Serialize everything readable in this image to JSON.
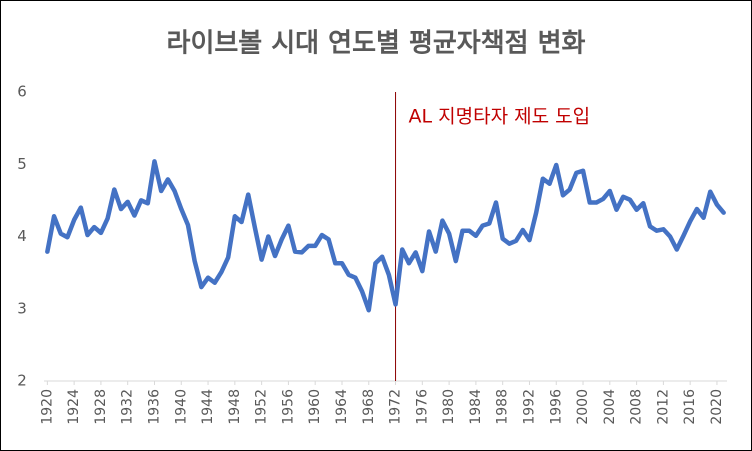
{
  "chart_data": {
    "type": "line",
    "title": "라이브볼 시대 연도별 평균자책점 변화",
    "x": [
      1920,
      1921,
      1922,
      1923,
      1924,
      1925,
      1926,
      1927,
      1928,
      1929,
      1930,
      1931,
      1932,
      1933,
      1934,
      1935,
      1936,
      1937,
      1938,
      1939,
      1940,
      1941,
      1942,
      1943,
      1944,
      1945,
      1946,
      1947,
      1948,
      1949,
      1950,
      1951,
      1952,
      1953,
      1954,
      1955,
      1956,
      1957,
      1958,
      1959,
      1960,
      1961,
      1962,
      1963,
      1964,
      1965,
      1966,
      1967,
      1968,
      1969,
      1970,
      1971,
      1972,
      1973,
      1974,
      1975,
      1976,
      1977,
      1978,
      1979,
      1980,
      1981,
      1982,
      1983,
      1984,
      1985,
      1986,
      1987,
      1988,
      1989,
      1990,
      1991,
      1992,
      1993,
      1994,
      1995,
      1996,
      1997,
      1998,
      1999,
      2000,
      2001,
      2002,
      2003,
      2004,
      2005,
      2006,
      2007,
      2008,
      2009,
      2010,
      2011,
      2012,
      2013,
      2014,
      2015,
      2016,
      2017,
      2018,
      2019,
      2020,
      2021
    ],
    "values": [
      3.79,
      4.28,
      4.04,
      3.99,
      4.23,
      4.4,
      4.02,
      4.13,
      4.05,
      4.25,
      4.65,
      4.38,
      4.48,
      4.29,
      4.5,
      4.46,
      5.04,
      4.63,
      4.79,
      4.63,
      4.38,
      4.16,
      3.66,
      3.3,
      3.43,
      3.36,
      3.51,
      3.71,
      4.28,
      4.2,
      4.58,
      4.12,
      3.68,
      4.0,
      3.73,
      3.96,
      4.15,
      3.79,
      3.78,
      3.87,
      3.87,
      4.02,
      3.96,
      3.63,
      3.63,
      3.47,
      3.43,
      3.24,
      2.98,
      3.63,
      3.72,
      3.47,
      3.06,
      3.82,
      3.63,
      3.78,
      3.52,
      4.07,
      3.79,
      4.22,
      4.04,
      3.66,
      4.08,
      4.08,
      4.01,
      4.15,
      4.18,
      4.47,
      3.97,
      3.9,
      3.94,
      4.09,
      3.95,
      4.33,
      4.8,
      4.73,
      4.99,
      4.57,
      4.65,
      4.88,
      4.91,
      4.47,
      4.47,
      4.52,
      4.63,
      4.37,
      4.55,
      4.51,
      4.37,
      4.46,
      4.14,
      4.08,
      4.1,
      4.0,
      3.82,
      4.01,
      4.21,
      4.38,
      4.26,
      4.62,
      4.44,
      4.33
    ],
    "color": "#4472c4",
    "xlim": [
      1919.5,
      2021.5
    ],
    "xticks": [
      1920,
      1924,
      1928,
      1932,
      1936,
      1940,
      1944,
      1948,
      1952,
      1956,
      1960,
      1964,
      1968,
      1972,
      1976,
      1980,
      1984,
      1988,
      1992,
      1996,
      2000,
      2004,
      2008,
      2012,
      2016,
      2020
    ],
    "ylim": [
      2,
      6
    ],
    "yticks": [
      2,
      3,
      4,
      5,
      6
    ],
    "grid": false,
    "annotation": {
      "text": "AL 지명타자 제도 도입",
      "x": 1972,
      "color": "#c00000"
    }
  }
}
